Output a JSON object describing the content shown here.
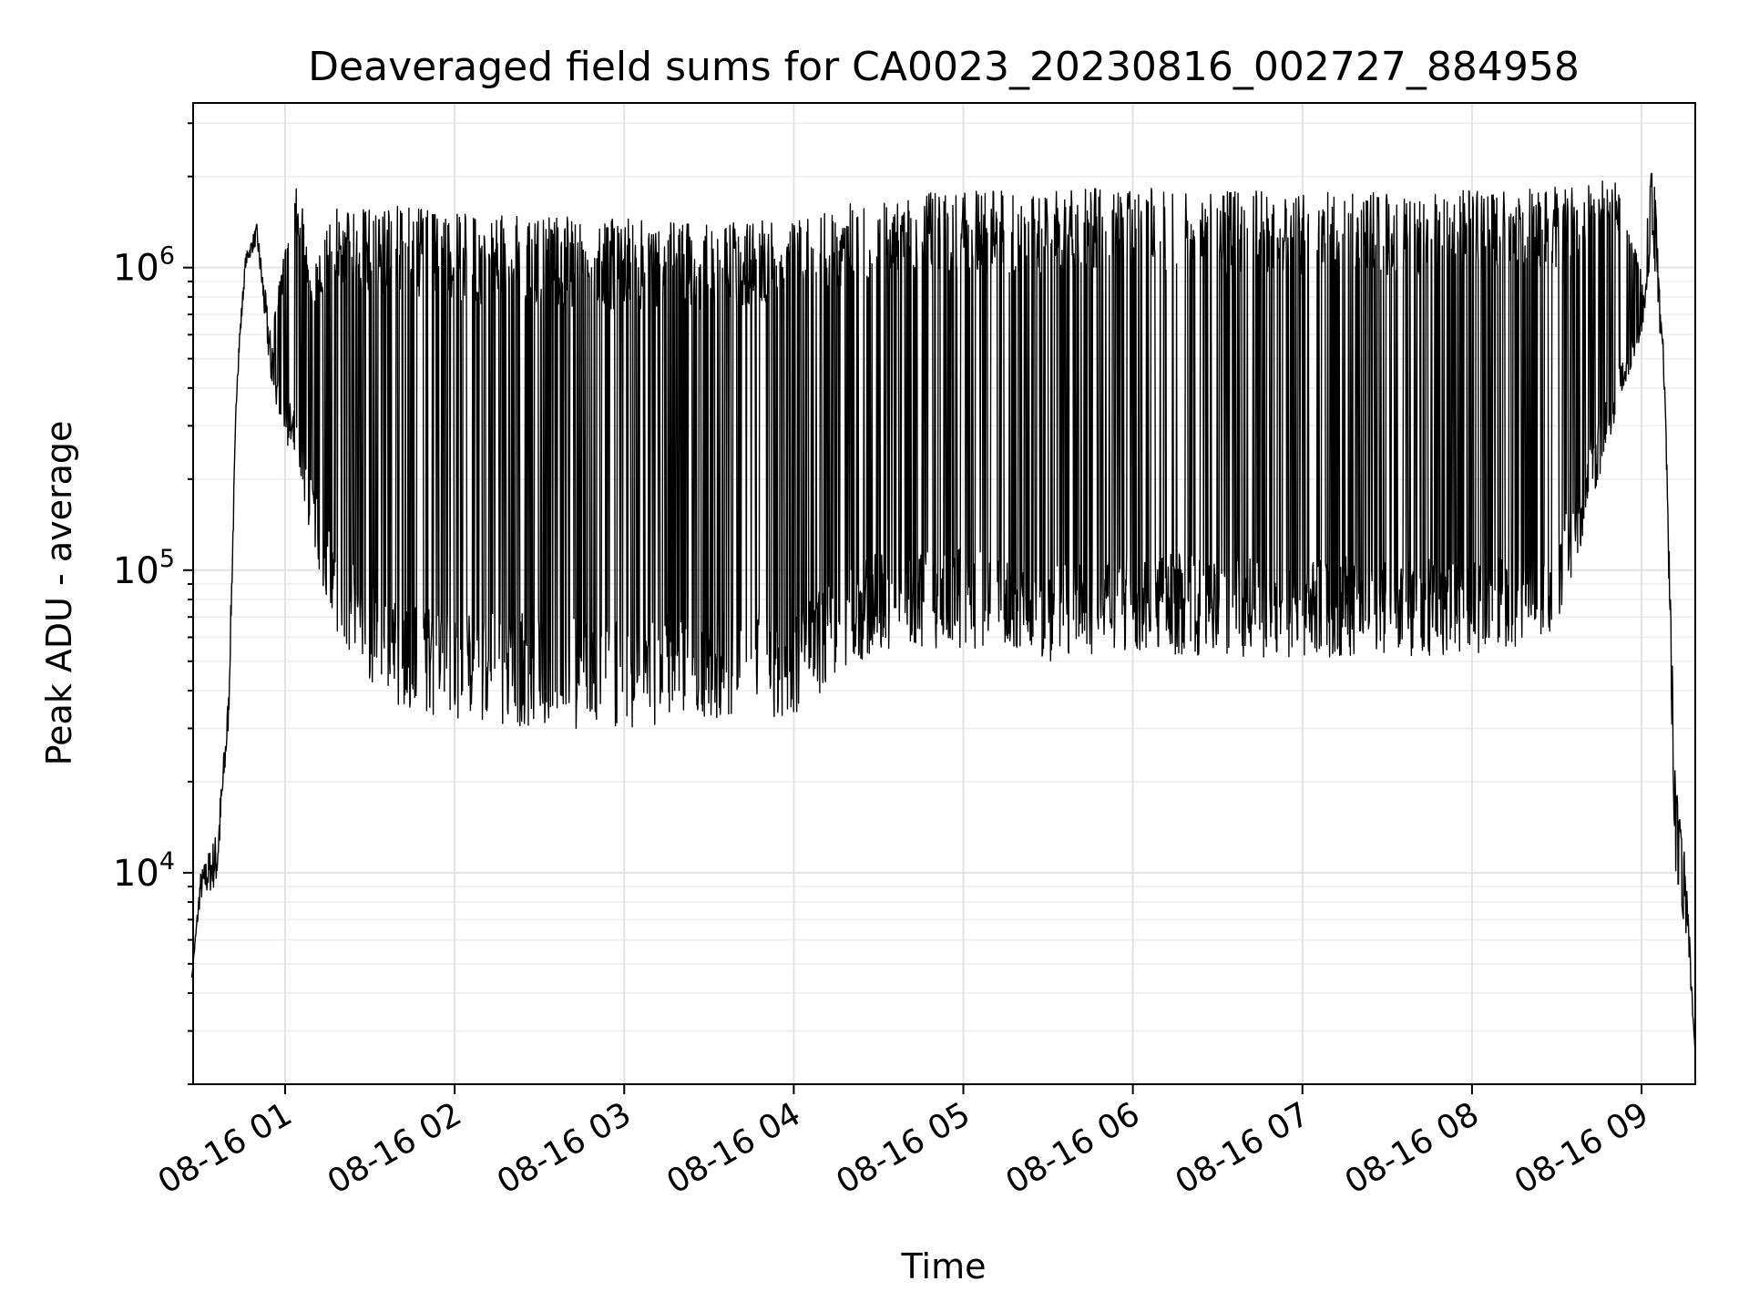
{
  "chart_data": {
    "type": "line",
    "title": "Deaveraged field sums for CA0023_20230816_002727_884958",
    "xlabel": "Time",
    "ylabel": "Peak ADU - average",
    "yscale": "log",
    "xlim": [
      "2023-08-16 00:27:27",
      "2023-08-16 09:19:00"
    ],
    "ylim": [
      2000,
      3500000
    ],
    "grid": true,
    "line_color": "#000000",
    "x_ticks": [
      "08-16 01",
      "08-16 02",
      "08-16 03",
      "08-16 04",
      "08-16 05",
      "08-16 06",
      "08-16 07",
      "08-16 08",
      "08-16 09"
    ],
    "y_ticks": [
      {
        "base": "10",
        "exp": "4",
        "value": 10000
      },
      {
        "base": "10",
        "exp": "5",
        "value": 100000
      },
      {
        "base": "10",
        "exp": "6",
        "value": 1000000
      }
    ],
    "envelope_upper": [
      {
        "x": "2023-08-16 00:27",
        "y": 4500
      },
      {
        "x": "2023-08-16 00:30",
        "y": 10000
      },
      {
        "x": "2023-08-16 00:36",
        "y": 14000
      },
      {
        "x": "2023-08-16 00:40",
        "y": 40000
      },
      {
        "x": "2023-08-16 00:43",
        "y": 500000
      },
      {
        "x": "2023-08-16 00:46",
        "y": 1100000
      },
      {
        "x": "2023-08-16 00:50",
        "y": 1400000
      },
      {
        "x": "2023-08-16 00:55",
        "y": 600000
      },
      {
        "x": "2023-08-16 01:04",
        "y": 2000000
      },
      {
        "x": "2023-08-16 01:10",
        "y": 1000000
      },
      {
        "x": "2023-08-16 01:18",
        "y": 1600000
      },
      {
        "x": "2023-08-16 01:40",
        "y": 1600000
      },
      {
        "x": "2023-08-16 02:00",
        "y": 1500000
      },
      {
        "x": "2023-08-16 02:30",
        "y": 1500000
      },
      {
        "x": "2023-08-16 03:00",
        "y": 1450000
      },
      {
        "x": "2023-08-16 03:30",
        "y": 1400000
      },
      {
        "x": "2023-08-16 04:00",
        "y": 1450000
      },
      {
        "x": "2023-08-16 04:30",
        "y": 1750000
      },
      {
        "x": "2023-08-16 05:00",
        "y": 1800000
      },
      {
        "x": "2023-08-16 05:30",
        "y": 1800000
      },
      {
        "x": "2023-08-16 06:00",
        "y": 1850000
      },
      {
        "x": "2023-08-16 06:30",
        "y": 1800000
      },
      {
        "x": "2023-08-16 07:00",
        "y": 1800000
      },
      {
        "x": "2023-08-16 07:30",
        "y": 1800000
      },
      {
        "x": "2023-08-16 08:00",
        "y": 1800000
      },
      {
        "x": "2023-08-16 08:30",
        "y": 1850000
      },
      {
        "x": "2023-08-16 08:50",
        "y": 2000000
      },
      {
        "x": "2023-08-16 09:00",
        "y": 1000000
      },
      {
        "x": "2023-08-16 09:04",
        "y": 2500000
      },
      {
        "x": "2023-08-16 09:08",
        "y": 500000
      },
      {
        "x": "2023-08-16 09:12",
        "y": 20000
      },
      {
        "x": "2023-08-16 09:16",
        "y": 10000
      },
      {
        "x": "2023-08-16 09:19",
        "y": 2500
      }
    ],
    "envelope_lower": [
      {
        "x": "2023-08-16 00:27",
        "y": 4500
      },
      {
        "x": "2023-08-16 00:30",
        "y": 8000
      },
      {
        "x": "2023-08-16 00:36",
        "y": 9000
      },
      {
        "x": "2023-08-16 00:40",
        "y": 30000
      },
      {
        "x": "2023-08-16 00:43",
        "y": 400000
      },
      {
        "x": "2023-08-16 00:46",
        "y": 1000000
      },
      {
        "x": "2023-08-16 00:50",
        "y": 1200000
      },
      {
        "x": "2023-08-16 00:55",
        "y": 400000
      },
      {
        "x": "2023-08-16 01:00",
        "y": 280000
      },
      {
        "x": "2023-08-16 01:10",
        "y": 120000
      },
      {
        "x": "2023-08-16 01:18",
        "y": 55000
      },
      {
        "x": "2023-08-16 01:40",
        "y": 35000
      },
      {
        "x": "2023-08-16 02:00",
        "y": 32000
      },
      {
        "x": "2023-08-16 02:30",
        "y": 30000
      },
      {
        "x": "2023-08-16 03:00",
        "y": 30000
      },
      {
        "x": "2023-08-16 03:30",
        "y": 32000
      },
      {
        "x": "2023-08-16 04:00",
        "y": 33000
      },
      {
        "x": "2023-08-16 04:30",
        "y": 55000
      },
      {
        "x": "2023-08-16 05:00",
        "y": 55000
      },
      {
        "x": "2023-08-16 05:30",
        "y": 50000
      },
      {
        "x": "2023-08-16 06:00",
        "y": 55000
      },
      {
        "x": "2023-08-16 06:30",
        "y": 50000
      },
      {
        "x": "2023-08-16 07:00",
        "y": 52000
      },
      {
        "x": "2023-08-16 07:30",
        "y": 50000
      },
      {
        "x": "2023-08-16 08:00",
        "y": 50000
      },
      {
        "x": "2023-08-16 08:30",
        "y": 60000
      },
      {
        "x": "2023-08-16 08:50",
        "y": 300000
      },
      {
        "x": "2023-08-16 09:00",
        "y": 600000
      },
      {
        "x": "2023-08-16 09:04",
        "y": 1200000
      },
      {
        "x": "2023-08-16 09:08",
        "y": 400000
      },
      {
        "x": "2023-08-16 09:12",
        "y": 9000
      },
      {
        "x": "2023-08-16 09:16",
        "y": 6000
      },
      {
        "x": "2023-08-16 09:19",
        "y": 2500
      }
    ]
  }
}
